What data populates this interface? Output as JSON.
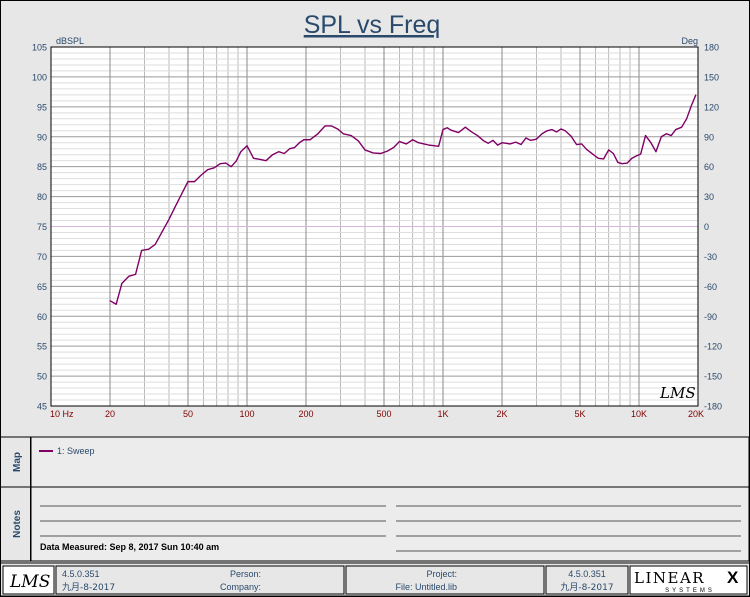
{
  "chart_data": {
    "type": "line",
    "title": "SPL vs Freq",
    "y_left_unit": "dBSPL",
    "y_right_unit": "Deg",
    "x_scale": "log",
    "xlim": [
      10,
      20000
    ],
    "ylim": [
      45,
      105
    ],
    "y2lim": [
      -180,
      180
    ],
    "x_ticks": [
      {
        "value": 10,
        "label": "10  Hz"
      },
      {
        "value": 20,
        "label": "20"
      },
      {
        "value": 50,
        "label": "50"
      },
      {
        "value": 100,
        "label": "100"
      },
      {
        "value": 200,
        "label": "200"
      },
      {
        "value": 500,
        "label": "500"
      },
      {
        "value": 1000,
        "label": "1K"
      },
      {
        "value": 2000,
        "label": "2K"
      },
      {
        "value": 5000,
        "label": "5K"
      },
      {
        "value": 10000,
        "label": "10K"
      },
      {
        "value": 20000,
        "label": "20K"
      }
    ],
    "y_ticks": [
      {
        "value": 105,
        "label": "105"
      },
      {
        "value": 100,
        "label": "100"
      },
      {
        "value": 95,
        "label": "95"
      },
      {
        "value": 90,
        "label": "90"
      },
      {
        "value": 85,
        "label": "85"
      },
      {
        "value": 80,
        "label": "80"
      },
      {
        "value": 75,
        "label": "75"
      },
      {
        "value": 70,
        "label": "70"
      },
      {
        "value": 65,
        "label": "65"
      },
      {
        "value": 60,
        "label": "60"
      },
      {
        "value": 55,
        "label": "55"
      },
      {
        "value": 50,
        "label": "50"
      },
      {
        "value": 45,
        "label": "45"
      }
    ],
    "y2_ticks": [
      {
        "value": 180,
        "label": "180"
      },
      {
        "value": 150,
        "label": "150"
      },
      {
        "value": 120,
        "label": "120"
      },
      {
        "value": 90,
        "label": "90"
      },
      {
        "value": 60,
        "label": "60"
      },
      {
        "value": 30,
        "label": "30"
      },
      {
        "value": 0,
        "label": "0"
      },
      {
        "value": -30,
        "label": "-30"
      },
      {
        "value": -60,
        "label": "-60"
      },
      {
        "value": -90,
        "label": "-90"
      },
      {
        "value": -120,
        "label": "-120"
      },
      {
        "value": -150,
        "label": "-150"
      },
      {
        "value": -180,
        "label": "-180"
      }
    ],
    "grid": true,
    "reference_line": {
      "axis": "y2",
      "value": 0,
      "color": "#d8b4d8"
    },
    "watermark": "LMS",
    "series": [
      {
        "name": "1: Sweep",
        "color": "#800066",
        "points": [
          [
            20,
            62.6
          ],
          [
            21.5,
            62.0
          ],
          [
            23,
            65.5
          ],
          [
            25,
            66.7
          ],
          [
            27,
            67.0
          ],
          [
            29,
            71.0
          ],
          [
            31.5,
            71.2
          ],
          [
            34,
            72.0
          ],
          [
            37,
            74.2
          ],
          [
            40,
            76.2
          ],
          [
            43,
            78.3
          ],
          [
            47,
            80.8
          ],
          [
            50,
            82.5
          ],
          [
            54,
            82.5
          ],
          [
            58,
            83.5
          ],
          [
            63,
            84.5
          ],
          [
            68,
            84.8
          ],
          [
            73,
            85.5
          ],
          [
            78,
            85.6
          ],
          [
            83,
            85.0
          ],
          [
            88,
            85.9
          ],
          [
            93,
            87.5
          ],
          [
            100,
            88.5
          ],
          [
            108,
            86.4
          ],
          [
            117,
            86.2
          ],
          [
            125,
            86.0
          ],
          [
            135,
            87.0
          ],
          [
            145,
            87.5
          ],
          [
            155,
            87.2
          ],
          [
            165,
            88.0
          ],
          [
            175,
            88.2
          ],
          [
            185,
            89.0
          ],
          [
            195,
            89.5
          ],
          [
            210,
            89.5
          ],
          [
            230,
            90.5
          ],
          [
            250,
            91.8
          ],
          [
            270,
            91.8
          ],
          [
            290,
            91.3
          ],
          [
            310,
            90.5
          ],
          [
            340,
            90.2
          ],
          [
            370,
            89.3
          ],
          [
            400,
            87.8
          ],
          [
            440,
            87.3
          ],
          [
            480,
            87.2
          ],
          [
            520,
            87.6
          ],
          [
            560,
            88.2
          ],
          [
            600,
            89.2
          ],
          [
            650,
            88.8
          ],
          [
            700,
            89.5
          ],
          [
            750,
            89.0
          ],
          [
            800,
            88.8
          ],
          [
            850,
            88.6
          ],
          [
            900,
            88.5
          ],
          [
            950,
            88.4
          ],
          [
            1000,
            91.2
          ],
          [
            1050,
            91.5
          ],
          [
            1100,
            91.1
          ],
          [
            1200,
            90.7
          ],
          [
            1300,
            91.6
          ],
          [
            1400,
            90.8
          ],
          [
            1500,
            90.2
          ],
          [
            1600,
            89.4
          ],
          [
            1700,
            88.9
          ],
          [
            1800,
            89.4
          ],
          [
            1900,
            88.6
          ],
          [
            2000,
            89.0
          ],
          [
            2100,
            88.9
          ],
          [
            2200,
            88.8
          ],
          [
            2350,
            89.1
          ],
          [
            2500,
            88.7
          ],
          [
            2650,
            89.8
          ],
          [
            2800,
            89.4
          ],
          [
            3000,
            89.6
          ],
          [
            3200,
            90.5
          ],
          [
            3400,
            91.0
          ],
          [
            3600,
            91.2
          ],
          [
            3800,
            90.8
          ],
          [
            4000,
            91.3
          ],
          [
            4200,
            91.0
          ],
          [
            4500,
            90.1
          ],
          [
            4800,
            88.7
          ],
          [
            5100,
            88.8
          ],
          [
            5400,
            87.9
          ],
          [
            5800,
            87.1
          ],
          [
            6200,
            86.4
          ],
          [
            6600,
            86.3
          ],
          [
            7000,
            87.8
          ],
          [
            7400,
            87.2
          ],
          [
            7800,
            85.7
          ],
          [
            8200,
            85.5
          ],
          [
            8700,
            85.6
          ],
          [
            9200,
            86.4
          ],
          [
            9700,
            86.8
          ],
          [
            10200,
            87.1
          ],
          [
            10800,
            90.2
          ],
          [
            11500,
            89.0
          ],
          [
            12200,
            87.5
          ],
          [
            13000,
            90.0
          ],
          [
            13800,
            90.5
          ],
          [
            14600,
            90.2
          ],
          [
            15400,
            91.2
          ],
          [
            16500,
            91.6
          ],
          [
            17500,
            93.0
          ],
          [
            18500,
            95.2
          ],
          [
            19500,
            97.0
          ]
        ]
      }
    ]
  },
  "panels": {
    "map_label": "Map",
    "notes_label": "Notes",
    "legend_entries": [
      {
        "name": "1: Sweep",
        "color": "#800066"
      }
    ],
    "data_measured": "Data Measured: Sep 8, 2017 Sun 10:40 am"
  },
  "footer": {
    "left_logo": "LMS",
    "version_left": "4.5.0.351",
    "date_left": "九月-8-2017",
    "person_label": "Person:",
    "company_label": "Company:",
    "project_label": "Project:",
    "file_label": "File: Untitled.lib",
    "version_right": "4.5.0.351",
    "date_right": "九月-8-2017",
    "brand_main": "LINEAR",
    "brand_x": "X",
    "brand_sub": "SYSTEMS"
  }
}
